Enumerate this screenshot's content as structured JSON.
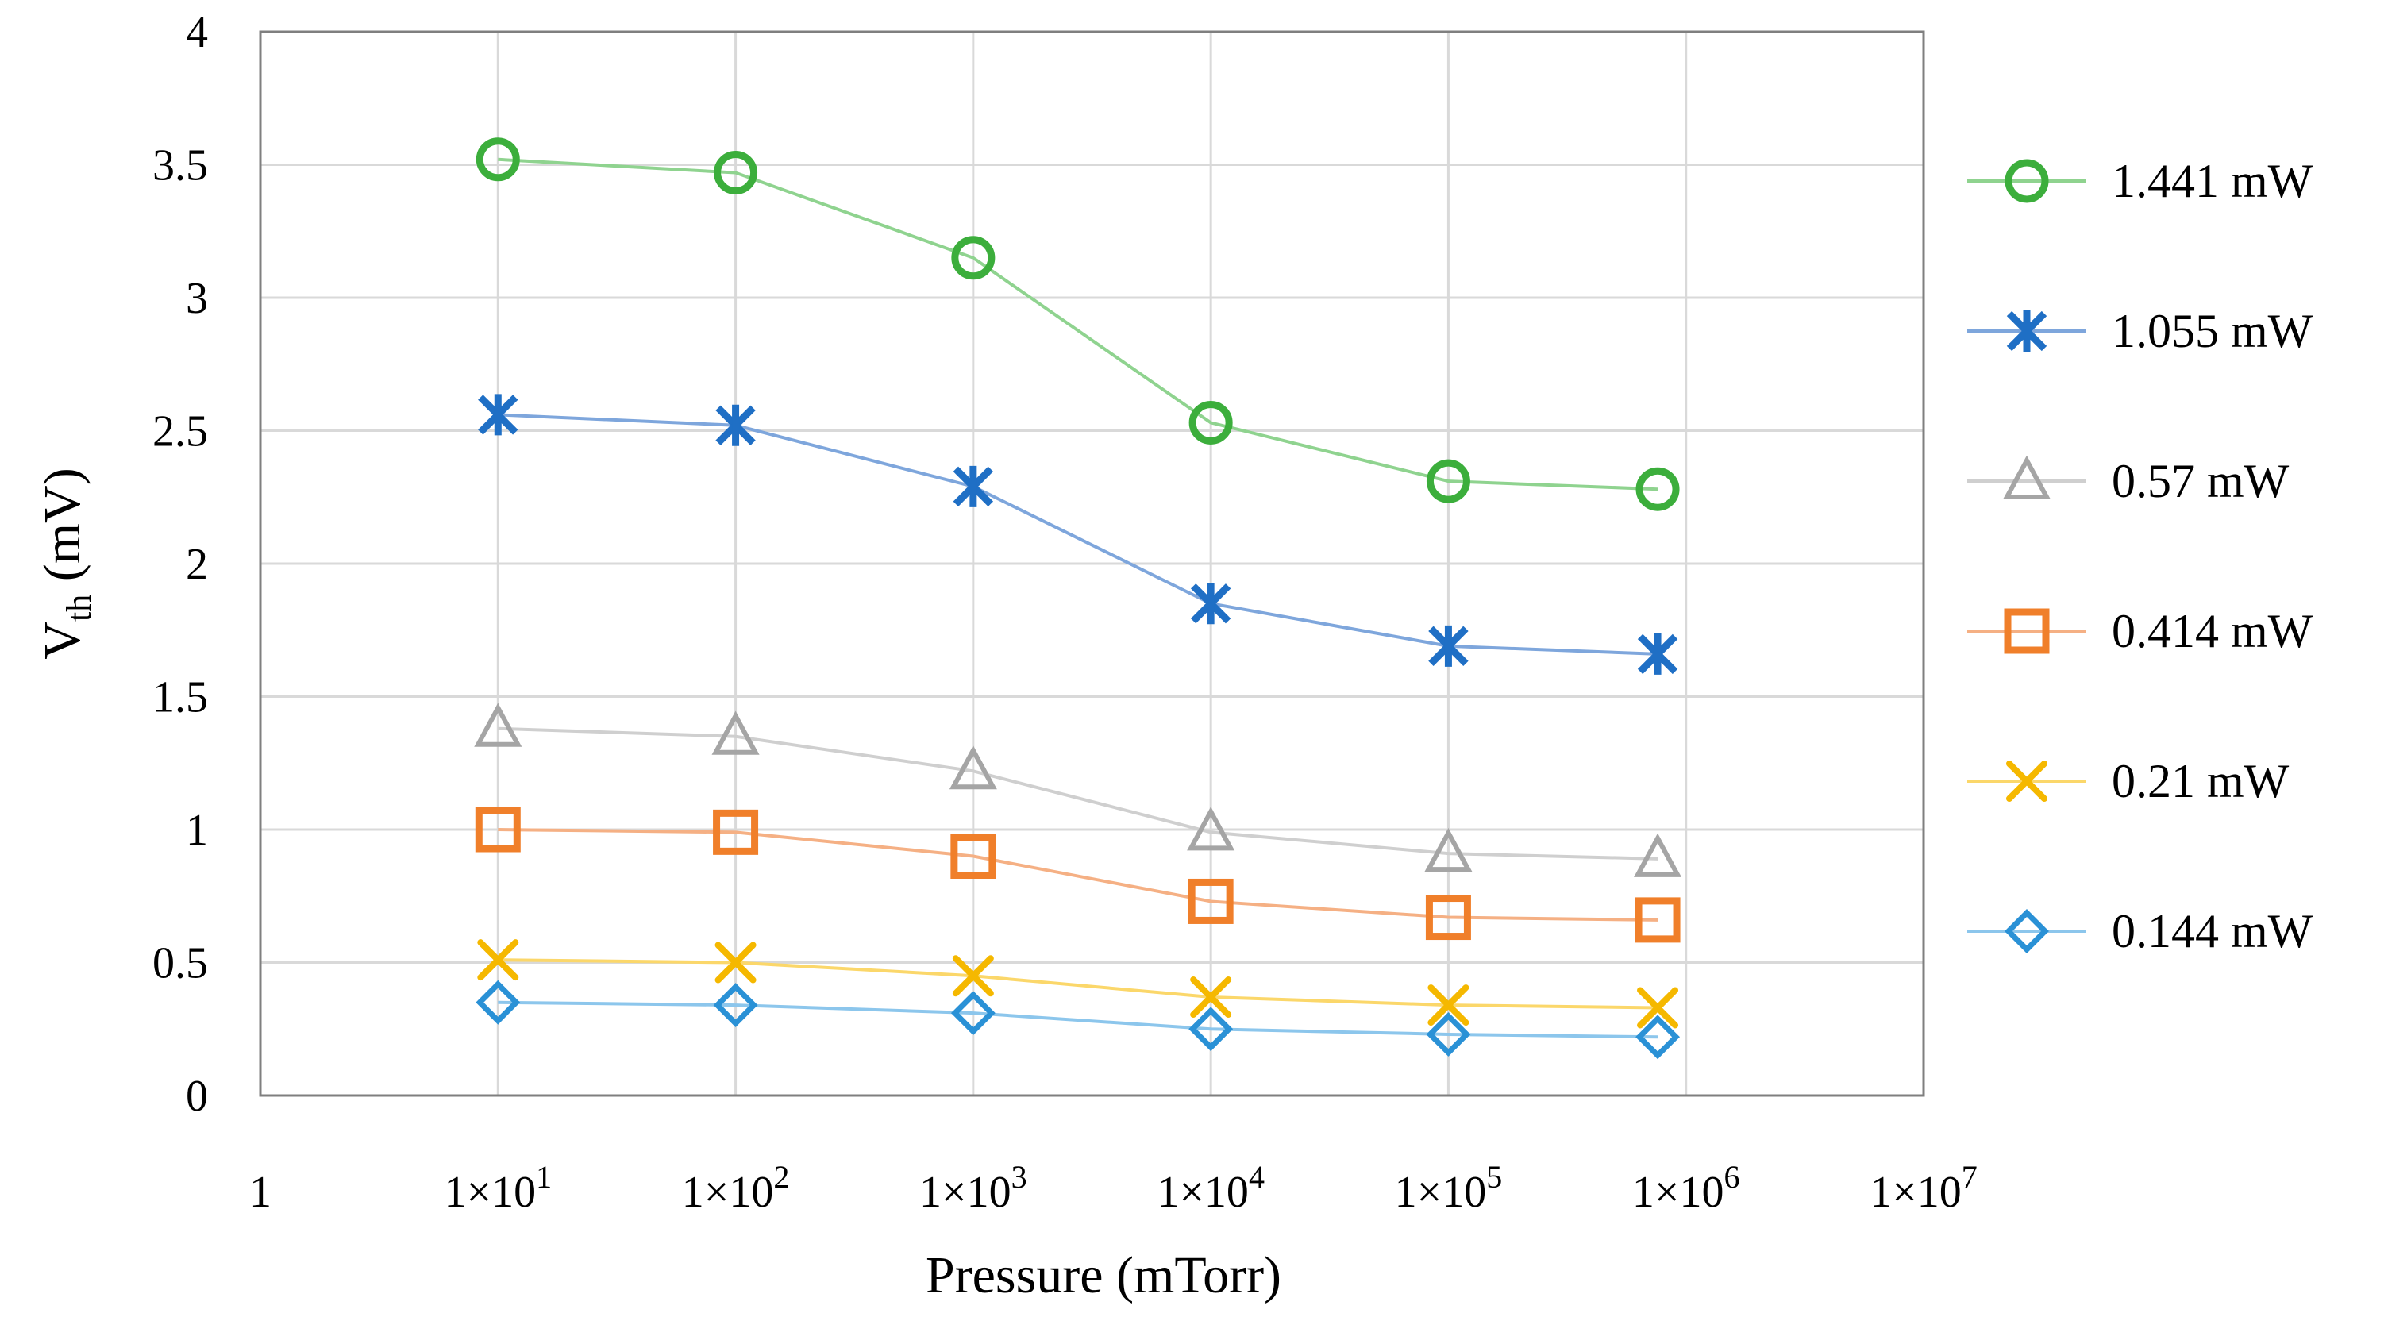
{
  "chart_data": {
    "type": "line",
    "title": "",
    "xlabel": "Pressure (mTorr)",
    "ylabel": {
      "main": "V",
      "sub": "th",
      "rest": " (mV)"
    },
    "xscale": "log",
    "xlim": [
      1,
      10000000
    ],
    "ylim": [
      0,
      4
    ],
    "grid": true,
    "legend_position": "right",
    "x_tick_labels": [
      {
        "base": "1",
        "exp": ""
      },
      {
        "base": "1×10",
        "exp": "1"
      },
      {
        "base": "1×10",
        "exp": "2"
      },
      {
        "base": "1×10",
        "exp": "3"
      },
      {
        "base": "1×10",
        "exp": "4"
      },
      {
        "base": "1×10",
        "exp": "5"
      },
      {
        "base": "1×10",
        "exp": "6"
      },
      {
        "base": "1×10",
        "exp": "7"
      }
    ],
    "y_tick_labels": [
      "0",
      "0.5",
      "1",
      "1.5",
      "2",
      "2.5",
      "3",
      "3.5",
      "4"
    ],
    "x": [
      10,
      100,
      1000,
      10000,
      100000,
      760000
    ],
    "series": [
      {
        "name": "1.441 mW",
        "marker": "circle",
        "color": "#3cae3c",
        "line_color": "#8fd38f",
        "values": [
          3.52,
          3.47,
          3.15,
          2.53,
          2.31,
          2.28
        ]
      },
      {
        "name": "1.055 mW",
        "marker": "asterisk",
        "color": "#1f6fc5",
        "line_color": "#7ea6dc",
        "values": [
          2.56,
          2.52,
          2.29,
          1.85,
          1.69,
          1.66
        ]
      },
      {
        "name": "0.57 mW",
        "marker": "triangle",
        "color": "#a5a5a5",
        "line_color": "#cfcfcf",
        "values": [
          1.38,
          1.35,
          1.22,
          0.99,
          0.91,
          0.89
        ]
      },
      {
        "name": "0.414 mW",
        "marker": "square",
        "color": "#f07f2a",
        "line_color": "#f5b084",
        "values": [
          1.0,
          0.99,
          0.9,
          0.73,
          0.67,
          0.66
        ]
      },
      {
        "name": "0.21 mW",
        "marker": "x",
        "color": "#f5b800",
        "line_color": "#fbd76a",
        "values": [
          0.51,
          0.5,
          0.45,
          0.37,
          0.34,
          0.33
        ]
      },
      {
        "name": "0.144 mW",
        "marker": "diamond",
        "color": "#2a91d6",
        "line_color": "#8cc6ec",
        "values": [
          0.35,
          0.34,
          0.31,
          0.25,
          0.23,
          0.22
        ]
      }
    ]
  }
}
